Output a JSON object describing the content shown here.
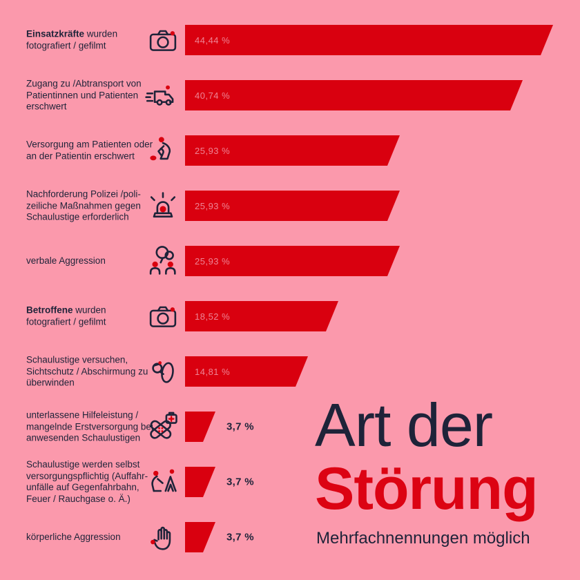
{
  "theme": {
    "background": "#fb99ac",
    "bar_color": "#d9000f",
    "text_color": "#1e2339",
    "title_accent_color": "#dc0313",
    "inside_value_color": "#ee8495"
  },
  "title": {
    "line1": "Art der",
    "line2": "Störung",
    "subtitle": "Mehrfachnennungen möglich"
  },
  "chart_data": {
    "type": "bar",
    "orientation": "horizontal",
    "title": "Art der Störung",
    "subtitle": "Mehrfachnennungen möglich",
    "unit": "%",
    "xlim": [
      0,
      46
    ],
    "grid": false,
    "legend": false,
    "bar_color": "#d9000f",
    "categories": [
      "Einsatzkräfte wurden fotografiert/gefilmt",
      "Zugang zu/Abtransport von Patientinnen und Patienten erschwert",
      "Versorgung am Patienten oder an der Patientin erschwert",
      "Nachforderung Polizei/polizeiliche Maßnahmen gegen Schaulustige erforderlich",
      "verbale Aggression",
      "Betroffene wurden fotografiert/gefilmt",
      "Schaulustige versuchen, Sichtschutz/Abschirmung zu überwinden",
      "unterlassene Hilfeleistung/mangelnde Erstversorgung bei anwesenden Schaulustigen",
      "Schaulustige werden selbst versorgungspflichtig (Auffahrunfälle auf Gegenfahrbahn, Feuer/Rauchgase o. Ä.)",
      "körperliche Aggression"
    ],
    "values": [
      44.44,
      40.74,
      25.93,
      25.93,
      25.93,
      18.52,
      14.81,
      3.7,
      3.7,
      3.7
    ],
    "value_labels": [
      "44,44 %",
      "40,74 %",
      "25,93 %",
      "25,93 %",
      "25,93 %",
      "18,52 %",
      "14,81 %",
      "3,7 %",
      "3,7 %",
      "3,7 %"
    ],
    "icons": [
      "camera-icon",
      "ambulance-icon",
      "cpr-icon",
      "siren-icon",
      "conversation-icon",
      "camera-icon",
      "shield-blanket-icon",
      "bandage-icon",
      "endangered-bystander-icon",
      "hand-icon"
    ]
  },
  "row_labels": [
    {
      "lines": [
        [
          {
            "t": "Einsatzkräfte",
            "b": true
          },
          {
            "t": " wurden",
            "b": false
          }
        ],
        [
          {
            "t": "fotografiert / gefilmt",
            "b": false
          }
        ]
      ]
    },
    {
      "lines": [
        [
          {
            "t": "Zugang zu /Abtransport von",
            "b": false
          }
        ],
        [
          {
            "t": "Patientinnen und Patienten",
            "b": false
          }
        ],
        [
          {
            "t": "erschwert",
            "b": false
          }
        ]
      ]
    },
    {
      "lines": [
        [
          {
            "t": "Versorgung am Patienten oder",
            "b": false
          }
        ],
        [
          {
            "t": "an der Patientin erschwert",
            "b": false
          }
        ]
      ]
    },
    {
      "lines": [
        [
          {
            "t": "Nachforderung Polizei /poli-",
            "b": false
          }
        ],
        [
          {
            "t": "zeiliche Maßnahmen gegen",
            "b": false
          }
        ],
        [
          {
            "t": "Schaulustige erforderlich",
            "b": false
          }
        ]
      ]
    },
    {
      "lines": [
        [
          {
            "t": "verbale Aggression",
            "b": false
          }
        ]
      ]
    },
    {
      "lines": [
        [
          {
            "t": "Betroffene",
            "b": true
          },
          {
            "t": " wurden",
            "b": false
          }
        ],
        [
          {
            "t": "fotografiert / gefilmt",
            "b": false
          }
        ]
      ]
    },
    {
      "lines": [
        [
          {
            "t": "Schaulustige versuchen,",
            "b": false
          }
        ],
        [
          {
            "t": "Sichtschutz / Abschirmung zu",
            "b": false
          }
        ],
        [
          {
            "t": "überwinden",
            "b": false
          }
        ]
      ]
    },
    {
      "lines": [
        [
          {
            "t": "unterlassene Hilfeleistung /",
            "b": false
          }
        ],
        [
          {
            "t": "mangelnde Erstversorgung bei",
            "b": false
          }
        ],
        [
          {
            "t": "anwesenden Schaulustigen",
            "b": false
          }
        ]
      ]
    },
    {
      "lines": [
        [
          {
            "t": "Schaulustige werden selbst",
            "b": false
          }
        ],
        [
          {
            "t": "versorgungspflichtig (Auffahr-",
            "b": false
          }
        ],
        [
          {
            "t": "unfälle auf Gegenfahrbahn,",
            "b": false
          }
        ],
        [
          {
            "t": "Feuer / Rauchgase o. Ä.)",
            "b": false
          }
        ]
      ]
    },
    {
      "lines": [
        [
          {
            "t": "körperliche Aggression",
            "b": false
          }
        ]
      ]
    }
  ]
}
